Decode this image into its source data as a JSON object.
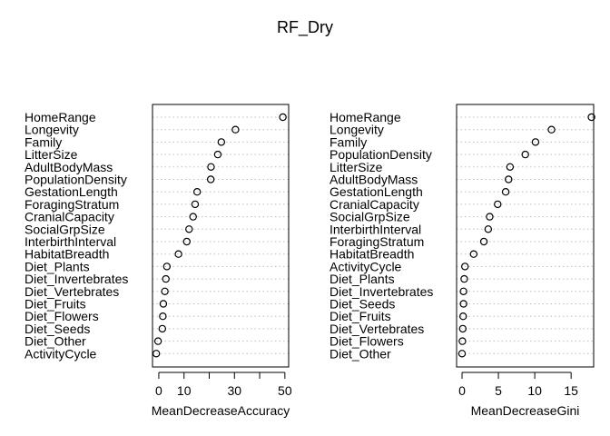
{
  "title": "RF_Dry",
  "chart_data": [
    {
      "type": "dotchart",
      "xlabel": "MeanDecreaseAccuracy",
      "xlim": [
        -2.5,
        51.5
      ],
      "ticks": [
        0,
        10,
        20,
        30,
        40,
        50
      ],
      "tick_labels": [
        "0",
        "10",
        "",
        "30",
        "",
        "50"
      ],
      "categories": [
        "HomeRange",
        "Longevity",
        "Family",
        "LitterSize",
        "AdultBodyMass",
        "PopulationDensity",
        "GestationLength",
        "ForagingStratum",
        "CranialCapacity",
        "SocialGrpSize",
        "InterbirthInterval",
        "HabitatBreadth",
        "Diet_Plants",
        "Diet_Invertebrates",
        "Diet_Vertebrates",
        "Diet_Fruits",
        "Diet_Flowers",
        "Diet_Seeds",
        "Diet_Other",
        "ActivityCycle"
      ],
      "values": [
        49.2,
        30.4,
        24.8,
        23.4,
        20.7,
        20.6,
        15.2,
        14.4,
        13.6,
        12.0,
        11.1,
        7.8,
        3.2,
        2.8,
        2.4,
        1.8,
        1.6,
        1.4,
        -0.3,
        -1.0
      ]
    },
    {
      "type": "dotchart",
      "xlabel": "MeanDecreaseGini",
      "xlim": [
        -0.75,
        18.1
      ],
      "ticks": [
        0,
        5,
        10,
        15
      ],
      "tick_labels": [
        "0",
        "5",
        "10",
        "15"
      ],
      "categories": [
        "HomeRange",
        "Longevity",
        "Family",
        "PopulationDensity",
        "LitterSize",
        "AdultBodyMass",
        "GestationLength",
        "CranialCapacity",
        "SocialGrpSize",
        "InterbirthInterval",
        "ForagingStratum",
        "HabitatBreadth",
        "ActivityCycle",
        "Diet_Plants",
        "Diet_Invertebrates",
        "Diet_Seeds",
        "Diet_Fruits",
        "Diet_Vertebrates",
        "Diet_Flowers",
        "Diet_Other"
      ],
      "values": [
        17.8,
        12.3,
        10.1,
        8.7,
        6.6,
        6.4,
        6.0,
        4.9,
        3.8,
        3.6,
        3.0,
        1.6,
        0.4,
        0.3,
        0.2,
        0.2,
        0.15,
        0.1,
        0.05,
        0.0
      ]
    }
  ]
}
